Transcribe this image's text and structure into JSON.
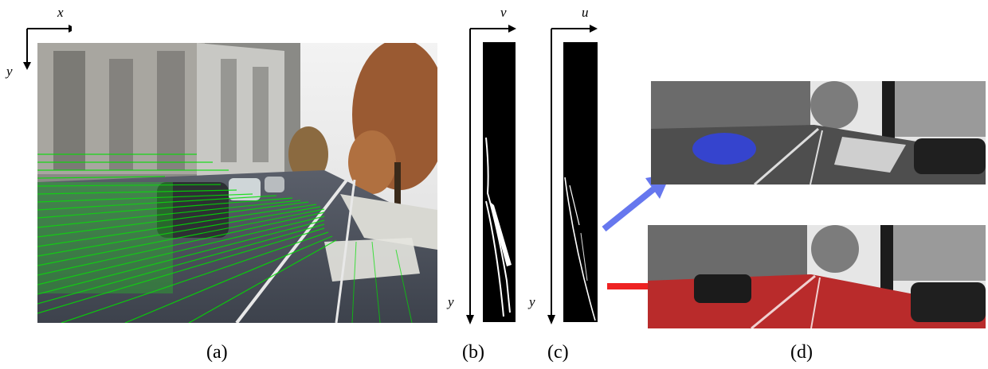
{
  "figure": {
    "panels": [
      {
        "id": "a",
        "caption": "(a)",
        "axis_labels": {
          "horizontal": "x",
          "vertical": "y"
        }
      },
      {
        "id": "b",
        "caption": "(b)",
        "axis_labels": {
          "horizontal": "v",
          "vertical": "y"
        }
      },
      {
        "id": "c",
        "caption": "(c)",
        "axis_labels": {
          "horizontal": "u",
          "vertical": "y"
        }
      },
      {
        "id": "d",
        "caption": "(d)"
      }
    ],
    "colors": {
      "flow_overlay": "#00e000",
      "blue_overlay": "#3344dd",
      "red_overlay": "#cc2222",
      "arrow_blue": "#6677ee",
      "arrow_red": "#ee2222"
    }
  }
}
